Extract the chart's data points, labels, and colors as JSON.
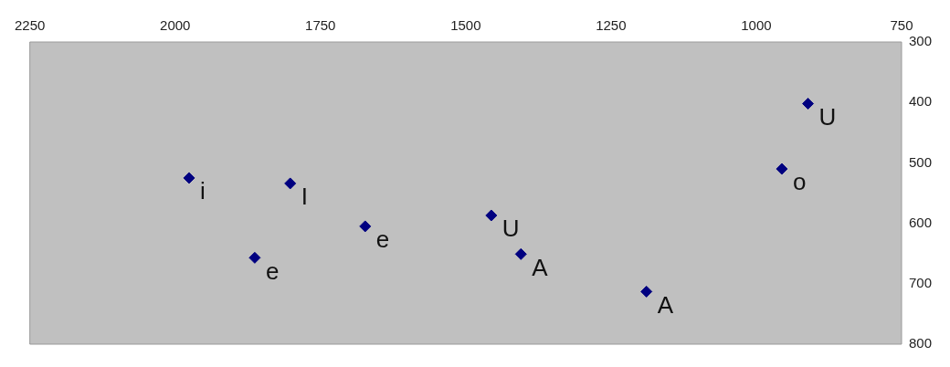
{
  "chart_data": {
    "type": "scatter",
    "x": [
      1976,
      1802,
      1863,
      1673,
      1456,
      1405,
      1189,
      956,
      911
    ],
    "values": [
      525,
      534,
      657,
      605,
      587,
      651,
      713,
      510,
      402
    ],
    "color": "#000080",
    "marker": "diamond",
    "grid": false,
    "xlim": [
      2250,
      750
    ],
    "xticks": [
      2250,
      2000,
      1750,
      1500,
      1250,
      1000,
      750
    ],
    "ylim": [
      800,
      300
    ],
    "yticks": [
      300,
      400,
      500,
      600,
      700,
      800
    ],
    "annotations": [
      {
        "text": "i",
        "x": 1976,
        "y": 525
      },
      {
        "text": "I",
        "x": 1802,
        "y": 534
      },
      {
        "text": "e",
        "x": 1863,
        "y": 657
      },
      {
        "text": "e",
        "x": 1673,
        "y": 605
      },
      {
        "text": "U",
        "x": 1456,
        "y": 587
      },
      {
        "text": "A",
        "x": 1405,
        "y": 651
      },
      {
        "text": "A",
        "x": 1189,
        "y": 713
      },
      {
        "text": "o",
        "x": 956,
        "y": 510
      },
      {
        "text": "U",
        "x": 911,
        "y": 402
      }
    ]
  }
}
